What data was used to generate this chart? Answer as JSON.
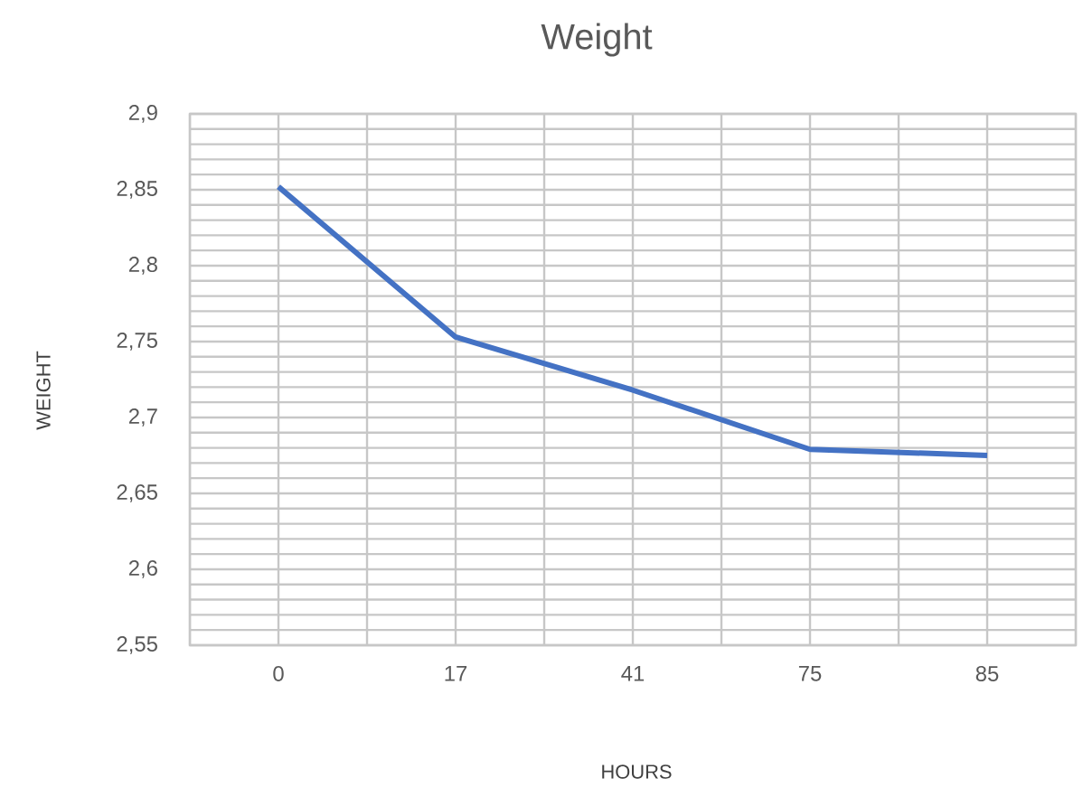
{
  "chart_data": {
    "type": "line",
    "title": "Weight",
    "xlabel": "HOURS",
    "ylabel": "WEIGHT",
    "categories": [
      "0",
      "17",
      "41",
      "75",
      "85"
    ],
    "series": [
      {
        "color": "#4472c4",
        "values": [
          2.852,
          2.753,
          2.718,
          2.679,
          2.675
        ]
      }
    ],
    "ylim": [
      2.55,
      2.9
    ],
    "yticks": [
      {
        "value": 2.55,
        "label": "2,55"
      },
      {
        "value": 2.6,
        "label": "2,6"
      },
      {
        "value": 2.65,
        "label": "2,65"
      },
      {
        "value": 2.7,
        "label": "2,7"
      },
      {
        "value": 2.75,
        "label": "2,75"
      },
      {
        "value": 2.8,
        "label": "2,8"
      },
      {
        "value": 2.85,
        "label": "2,85"
      },
      {
        "value": 2.9,
        "label": "2,9"
      }
    ],
    "grid": true,
    "marker": "none",
    "line_style": "solid"
  }
}
